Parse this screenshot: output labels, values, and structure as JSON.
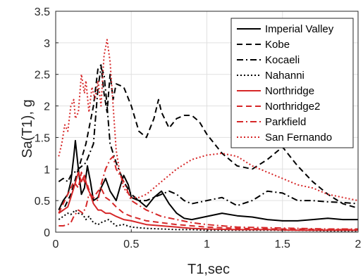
{
  "chart_data": {
    "type": "line",
    "title": "",
    "xlabel": "T1,sec",
    "ylabel": "Sa(T1), g",
    "xlim": [
      0,
      2
    ],
    "ylim": [
      0,
      3.5
    ],
    "xticks": [
      0,
      0.5,
      1,
      1.5,
      2
    ],
    "xtick_labels": [
      "0",
      "0.5",
      "1",
      "1.5",
      "2"
    ],
    "yticks": [
      0,
      0.5,
      1,
      1.5,
      2,
      2.5,
      3,
      3.5
    ],
    "ytick_labels": [
      "0",
      "0.5",
      "1",
      "1.5",
      "2",
      "2.5",
      "3",
      "3.5"
    ],
    "grid": true,
    "legend_placement": "top-right",
    "series": [
      {
        "name": "Imperial Valley",
        "color": "#000000",
        "dash": "solid",
        "x": [
          0.02,
          0.05,
          0.08,
          0.1,
          0.12,
          0.13,
          0.15,
          0.17,
          0.19,
          0.21,
          0.23,
          0.25,
          0.28,
          0.3,
          0.33,
          0.36,
          0.4,
          0.43,
          0.45,
          0.48,
          0.5,
          0.55,
          0.6,
          0.65,
          0.7,
          0.75,
          0.8,
          0.85,
          0.9,
          1.0,
          1.1,
          1.2,
          1.3,
          1.4,
          1.5,
          1.6,
          1.7,
          1.8,
          1.9,
          2.0
        ],
        "y": [
          0.35,
          0.5,
          0.6,
          0.8,
          1.2,
          1.45,
          1.0,
          0.6,
          0.7,
          1.05,
          0.8,
          0.5,
          0.55,
          0.7,
          0.85,
          0.65,
          0.5,
          0.75,
          0.9,
          0.75,
          0.55,
          0.5,
          0.4,
          0.55,
          0.65,
          0.45,
          0.3,
          0.22,
          0.2,
          0.25,
          0.3,
          0.26,
          0.24,
          0.2,
          0.18,
          0.18,
          0.2,
          0.22,
          0.2,
          0.2
        ]
      },
      {
        "name": "Kobe",
        "color": "#000000",
        "dash": "dashed",
        "x": [
          0.02,
          0.05,
          0.08,
          0.1,
          0.15,
          0.2,
          0.25,
          0.28,
          0.3,
          0.32,
          0.34,
          0.36,
          0.38,
          0.4,
          0.45,
          0.5,
          0.55,
          0.6,
          0.65,
          0.68,
          0.7,
          0.75,
          0.8,
          0.85,
          0.9,
          0.95,
          1.0,
          1.1,
          1.2,
          1.3,
          1.4,
          1.5,
          1.6,
          1.7,
          1.8,
          1.9,
          2.0
        ],
        "y": [
          0.3,
          0.35,
          0.5,
          0.6,
          1.0,
          1.4,
          2.0,
          2.6,
          2.65,
          2.2,
          1.9,
          2.5,
          2.1,
          2.35,
          2.3,
          2.0,
          1.6,
          1.5,
          1.8,
          2.1,
          1.9,
          1.65,
          1.8,
          1.85,
          1.85,
          1.75,
          1.55,
          1.25,
          1.05,
          1.0,
          1.15,
          1.35,
          1.05,
          0.8,
          0.6,
          0.45,
          0.38
        ]
      },
      {
        "name": "Kocaeli",
        "color": "#000000",
        "dash": "dashdot",
        "x": [
          0.02,
          0.05,
          0.08,
          0.1,
          0.15,
          0.2,
          0.25,
          0.28,
          0.3,
          0.32,
          0.34,
          0.36,
          0.4,
          0.45,
          0.5,
          0.55,
          0.6,
          0.65,
          0.7,
          0.75,
          0.8,
          0.85,
          0.9,
          1.0,
          1.1,
          1.2,
          1.3,
          1.4,
          1.5,
          1.6,
          1.7,
          1.8,
          1.9,
          2.0
        ],
        "y": [
          0.8,
          0.85,
          0.8,
          0.9,
          1.0,
          1.1,
          1.4,
          2.3,
          2.6,
          2.5,
          2.0,
          1.4,
          1.1,
          0.8,
          0.6,
          0.5,
          0.5,
          0.55,
          0.6,
          0.65,
          0.6,
          0.5,
          0.45,
          0.5,
          0.55,
          0.42,
          0.5,
          0.65,
          0.62,
          0.5,
          0.5,
          0.48,
          0.47,
          0.45
        ]
      },
      {
        "name": "Nahanni",
        "color": "#000000",
        "dash": "dotted",
        "x": [
          0.02,
          0.05,
          0.08,
          0.1,
          0.13,
          0.15,
          0.18,
          0.2,
          0.22,
          0.25,
          0.28,
          0.3,
          0.35,
          0.4,
          0.45,
          0.5,
          0.6,
          0.7,
          0.8,
          0.9,
          1.0,
          1.2,
          1.4,
          1.6,
          1.8,
          2.0
        ],
        "y": [
          0.2,
          0.25,
          0.3,
          0.28,
          0.35,
          0.3,
          0.28,
          0.2,
          0.25,
          0.15,
          0.12,
          0.15,
          0.2,
          0.1,
          0.12,
          0.08,
          0.06,
          0.05,
          0.04,
          0.04,
          0.03,
          0.03,
          0.03,
          0.03,
          0.02,
          0.02
        ]
      },
      {
        "name": "Northridge",
        "color": "#d62728",
        "dash": "solid",
        "x": [
          0.02,
          0.05,
          0.08,
          0.1,
          0.12,
          0.15,
          0.17,
          0.19,
          0.21,
          0.23,
          0.25,
          0.28,
          0.3,
          0.33,
          0.36,
          0.4,
          0.45,
          0.5,
          0.6,
          0.7,
          0.8,
          0.9,
          1.0,
          1.2,
          1.4,
          1.6,
          1.8,
          2.0
        ],
        "y": [
          0.3,
          0.35,
          0.4,
          0.55,
          0.7,
          0.95,
          0.8,
          0.9,
          0.7,
          0.6,
          0.45,
          0.35,
          0.35,
          0.3,
          0.3,
          0.25,
          0.2,
          0.18,
          0.12,
          0.1,
          0.08,
          0.06,
          0.05,
          0.04,
          0.04,
          0.03,
          0.03,
          0.03
        ]
      },
      {
        "name": "Northridge2",
        "color": "#d62728",
        "dash": "dashed",
        "x": [
          0.02,
          0.05,
          0.08,
          0.1,
          0.12,
          0.15,
          0.17,
          0.19,
          0.21,
          0.23,
          0.25,
          0.28,
          0.3,
          0.33,
          0.36,
          0.4,
          0.45,
          0.5,
          0.6,
          0.7,
          0.8,
          0.9,
          1.0,
          1.2,
          1.4,
          1.6,
          1.8,
          2.0
        ],
        "y": [
          0.3,
          0.45,
          0.6,
          0.7,
          0.8,
          0.7,
          0.95,
          0.8,
          0.75,
          0.6,
          0.55,
          0.65,
          0.7,
          0.55,
          0.5,
          0.4,
          0.3,
          0.25,
          0.18,
          0.15,
          0.12,
          0.1,
          0.08,
          0.06,
          0.05,
          0.05,
          0.04,
          0.04
        ]
      },
      {
        "name": "Parkfield",
        "color": "#d62728",
        "dash": "dashdot",
        "x": [
          0.02,
          0.05,
          0.08,
          0.1,
          0.12,
          0.15,
          0.18,
          0.2,
          0.22,
          0.25,
          0.28,
          0.3,
          0.33,
          0.36,
          0.38,
          0.4,
          0.45,
          0.5,
          0.6,
          0.7,
          0.8,
          0.9,
          1.0,
          1.2,
          1.4,
          1.6,
          1.8,
          2.0
        ],
        "y": [
          0.1,
          0.1,
          0.12,
          0.15,
          0.25,
          0.35,
          0.3,
          0.4,
          0.6,
          0.55,
          0.5,
          0.75,
          1.0,
          1.15,
          1.2,
          1.0,
          0.8,
          0.5,
          0.35,
          0.25,
          0.2,
          0.15,
          0.12,
          0.08,
          0.07,
          0.06,
          0.05,
          0.05
        ]
      },
      {
        "name": "San Fernando",
        "color": "#d62728",
        "dash": "dotted",
        "x": [
          0.02,
          0.04,
          0.06,
          0.08,
          0.1,
          0.12,
          0.13,
          0.15,
          0.17,
          0.19,
          0.2,
          0.22,
          0.24,
          0.26,
          0.28,
          0.3,
          0.32,
          0.34,
          0.36,
          0.38,
          0.4,
          0.42,
          0.45,
          0.5,
          0.55,
          0.6,
          0.65,
          0.7,
          0.8,
          0.9,
          1.0,
          1.1,
          1.2,
          1.3,
          1.4,
          1.5,
          1.6,
          1.7,
          1.8,
          1.9,
          2.0
        ],
        "y": [
          1.2,
          1.4,
          1.7,
          1.6,
          2.0,
          2.1,
          1.8,
          1.9,
          2.5,
          2.2,
          2.4,
          1.9,
          2.3,
          2.1,
          2.4,
          2.0,
          2.8,
          3.05,
          2.7,
          2.0,
          1.3,
          1.0,
          0.7,
          0.55,
          0.55,
          0.6,
          0.7,
          0.8,
          1.0,
          1.15,
          1.22,
          1.25,
          1.2,
          1.05,
          0.95,
          0.85,
          0.75,
          0.7,
          0.6,
          0.55,
          0.5
        ]
      }
    ]
  }
}
